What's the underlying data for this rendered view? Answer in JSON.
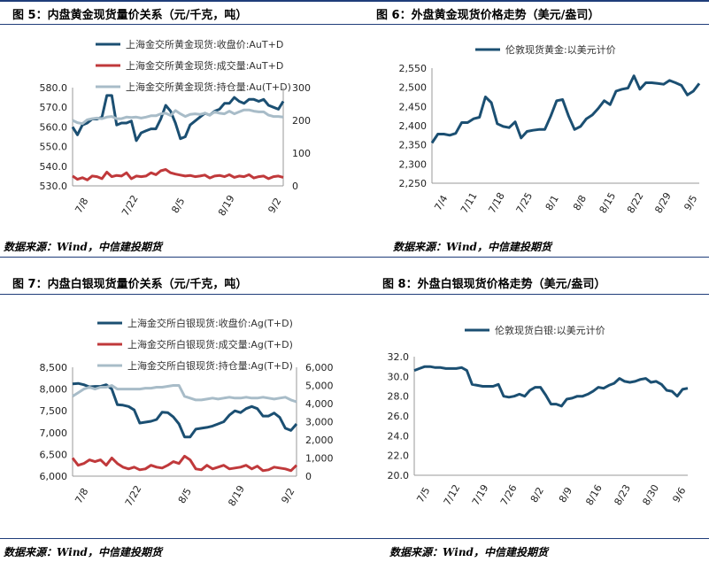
{
  "titles": {
    "fig5": "图 5：内盘黄金现货量价关系（元/千克，吨）",
    "fig6": "图 6：外盘黄金现货价格走势（美元/盎司）",
    "fig7": "图 7：内盘白银现货量价关系（元/千克，吨）",
    "fig8": "图 8：外盘白银现货价格走势（美元/盎司）"
  },
  "source": "数据来源：Wind，中信建投期货",
  "colors": {
    "price": "#1b4f72",
    "volume": "#c0393b",
    "position": "#a8bcc8",
    "rule": "#1f3d7a"
  },
  "chart_data": [
    {
      "id": "fig5",
      "type": "line",
      "x_ticks": [
        "7/8",
        "7/22",
        "8/5",
        "8/19",
        "9/2"
      ],
      "left_axis": {
        "range": [
          530,
          580
        ],
        "ticks": [
          "530.0",
          "540.0",
          "550.0",
          "560.0",
          "570.0",
          "580.0"
        ]
      },
      "right_axis": {
        "range": [
          0,
          300
        ],
        "ticks": [
          "0",
          "100",
          "200",
          "300"
        ]
      },
      "series": [
        {
          "name": "上海金交所黄金现货:收盘价:AuT+D",
          "axis": "left",
          "color": "#1b4f72",
          "values": [
            560,
            556,
            561,
            562,
            564,
            564,
            565,
            576,
            576,
            561,
            562,
            562,
            563,
            553,
            557,
            558,
            559,
            559,
            564,
            571,
            568,
            562,
            554,
            555,
            561,
            563,
            565,
            567,
            566,
            568,
            569,
            572,
            572,
            575,
            573,
            572,
            574,
            574,
            573,
            574,
            571,
            570,
            569,
            573
          ]
        },
        {
          "name": "上海金交所黄金现货:成交量:AuT+D",
          "axis": "right",
          "color": "#c0393b",
          "values": [
            30,
            20,
            25,
            18,
            30,
            28,
            22,
            42,
            28,
            32,
            30,
            40,
            22,
            30,
            28,
            30,
            40,
            34,
            46,
            50,
            40,
            36,
            33,
            30,
            32,
            28,
            30,
            33,
            24,
            30,
            32,
            28,
            34,
            26,
            30,
            28,
            34,
            24,
            28,
            30,
            22,
            28,
            30,
            26
          ]
        },
        {
          "name": "上海金交所黄金现货:持仓量:Au(T+D)",
          "axis": "right",
          "color": "#a8bcc8",
          "values": [
            200,
            193,
            190,
            202,
            205,
            207,
            205,
            210,
            212,
            205,
            205,
            210,
            209,
            210,
            207,
            210,
            214,
            214,
            220,
            222,
            215,
            230,
            220,
            212,
            218,
            220,
            218,
            222,
            216,
            226,
            222,
            220,
            228,
            220,
            226,
            232,
            232,
            228,
            226,
            226,
            216,
            212,
            212,
            210
          ]
        }
      ]
    },
    {
      "id": "fig6",
      "type": "line",
      "x_ticks": [
        "7/4",
        "7/11",
        "7/18",
        "7/25",
        "8/1",
        "8/8",
        "8/15",
        "8/22",
        "8/29",
        "9/5"
      ],
      "left_axis": {
        "range": [
          2250,
          2550
        ],
        "ticks": [
          "2,250",
          "2,300",
          "2,350",
          "2,400",
          "2,450",
          "2,500",
          "2,550"
        ]
      },
      "series": [
        {
          "name": "伦敦现货黄金:以美元计价",
          "axis": "left",
          "color": "#1b4f72",
          "values": [
            2355,
            2378,
            2378,
            2375,
            2380,
            2408,
            2408,
            2418,
            2422,
            2475,
            2460,
            2405,
            2398,
            2395,
            2410,
            2368,
            2385,
            2388,
            2390,
            2390,
            2425,
            2465,
            2468,
            2425,
            2390,
            2398,
            2418,
            2428,
            2445,
            2465,
            2455,
            2490,
            2495,
            2498,
            2530,
            2495,
            2512,
            2512,
            2510,
            2508,
            2518,
            2512,
            2505,
            2480,
            2490,
            2510
          ]
        }
      ]
    },
    {
      "id": "fig7",
      "type": "line",
      "x_ticks": [
        "7/8",
        "7/22",
        "8/5",
        "8/19",
        "9/2"
      ],
      "left_axis": {
        "range": [
          6000,
          8500
        ],
        "ticks": [
          "6,000",
          "6,500",
          "7,000",
          "7,500",
          "8,000",
          "8,500"
        ]
      },
      "right_axis": {
        "range": [
          0,
          6000
        ],
        "ticks": [
          "0",
          "1,000",
          "2,000",
          "3,000",
          "4,000",
          "5,000",
          "6,000"
        ]
      },
      "series": [
        {
          "name": "上海金交所白银现货:收盘价:Ag(T+D)",
          "axis": "left",
          "color": "#1b4f72",
          "values": [
            8120,
            8130,
            8100,
            8050,
            8060,
            8060,
            8100,
            8000,
            7640,
            7630,
            7600,
            7520,
            7220,
            7240,
            7260,
            7300,
            7470,
            7460,
            7360,
            7200,
            6900,
            6900,
            7080,
            7100,
            7120,
            7150,
            7200,
            7250,
            7400,
            7500,
            7460,
            7550,
            7600,
            7550,
            7380,
            7380,
            7450,
            7350,
            7100,
            7050,
            7200
          ]
        },
        {
          "name": "上海金交所白银现货:成交量:Ag(T+D)",
          "axis": "right",
          "color": "#c0393b",
          "values": [
            1000,
            600,
            700,
            900,
            800,
            900,
            600,
            1000,
            700,
            500,
            400,
            500,
            350,
            400,
            600,
            500,
            450,
            600,
            800,
            700,
            1100,
            900,
            400,
            350,
            600,
            400,
            500,
            600,
            400,
            450,
            500,
            600,
            400,
            550,
            300,
            350,
            500,
            450,
            400,
            300,
            600
          ]
        },
        {
          "name": "上海金交所白银现货:持仓量:Ag(T+D)",
          "axis": "right",
          "color": "#a8bcc8",
          "values": [
            4400,
            4600,
            4800,
            4900,
            4800,
            4900,
            4900,
            5000,
            4800,
            4800,
            4800,
            4800,
            4800,
            4850,
            4850,
            4900,
            4900,
            4950,
            5000,
            5000,
            4400,
            4300,
            4200,
            4200,
            4250,
            4300,
            4250,
            4300,
            4350,
            4300,
            4300,
            4350,
            4300,
            4300,
            4350,
            4300,
            4250,
            4300,
            4350,
            4200,
            4100
          ]
        }
      ]
    },
    {
      "id": "fig8",
      "type": "line",
      "x_ticks": [
        "7/5",
        "7/12",
        "7/19",
        "7/26",
        "8/2",
        "8/9",
        "8/16",
        "8/23",
        "8/30",
        "9/6"
      ],
      "left_axis": {
        "range": [
          20,
          32
        ],
        "ticks": [
          "20.0",
          "22.0",
          "24.0",
          "26.0",
          "28.0",
          "30.0",
          "32.0"
        ]
      },
      "series": [
        {
          "name": "伦敦现货白银:以美元计价",
          "axis": "left",
          "color": "#1b4f72",
          "values": [
            30.6,
            30.8,
            31.0,
            31.0,
            30.9,
            30.9,
            30.8,
            30.8,
            30.8,
            30.9,
            30.6,
            29.2,
            29.1,
            29.0,
            29.0,
            29.0,
            29.2,
            28.0,
            27.9,
            28.0,
            28.2,
            28.0,
            28.6,
            28.9,
            28.9,
            28.1,
            27.2,
            27.2,
            27.0,
            27.7,
            27.8,
            28.0,
            28.0,
            28.2,
            28.5,
            28.9,
            28.8,
            29.1,
            29.3,
            29.8,
            29.5,
            29.4,
            29.5,
            29.7,
            29.8,
            29.4,
            29.5,
            29.2,
            28.6,
            28.5,
            28.0,
            28.7,
            28.8
          ]
        }
      ]
    }
  ]
}
